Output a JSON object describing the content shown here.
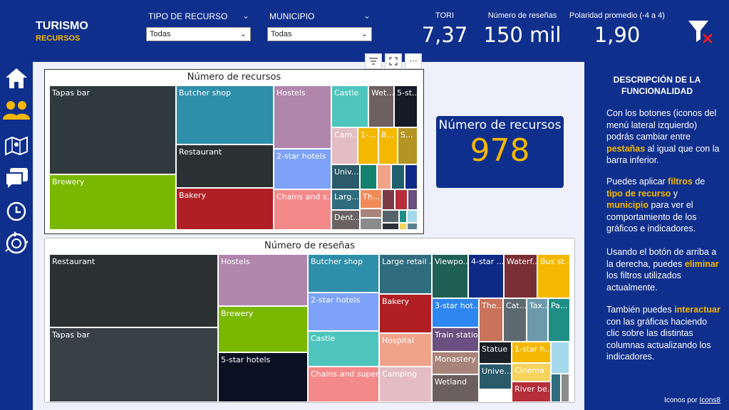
{
  "header": {
    "title": "TURISMO",
    "subtitle": "RECURSOS",
    "filters": [
      {
        "label": "TIPO DE RECURSO",
        "value": "Todas"
      },
      {
        "label": "MUNICIPIO",
        "value": "Todas"
      }
    ],
    "kpis": [
      {
        "label": "TORI",
        "value": "7,37"
      },
      {
        "label": "Número de reseñas",
        "value": "150 mil"
      },
      {
        "label": "Polaridad promedio (-4 a 4)",
        "value": "1,90"
      }
    ],
    "clear_filter_icon": "funnel-clear-icon"
  },
  "sidebar": {
    "items": [
      {
        "icon": "home-icon"
      },
      {
        "icon": "users-icon"
      },
      {
        "icon": "map-icon"
      },
      {
        "icon": "chat-icon"
      },
      {
        "icon": "clock-icon"
      },
      {
        "icon": "cycle-icon"
      }
    ]
  },
  "toolbar": {
    "icons": [
      "filter-lines-icon",
      "focus-mode-icon",
      "more-options-icon"
    ],
    "more_glyph": "···"
  },
  "card": {
    "label": "Número de recursos",
    "value": "978"
  },
  "treemap_recursos": {
    "title": "Número de recursos",
    "tiles": [
      {
        "label": "Tapas bar",
        "color": "#2f3a3c"
      },
      {
        "label": "Brewery",
        "color": "#7ab800"
      },
      {
        "label": "Butcher shop",
        "color": "#2f8eaa"
      },
      {
        "label": "Restaurant",
        "color": "#2b3133"
      },
      {
        "label": "Bakery",
        "color": "#b01f24"
      },
      {
        "label": "Hostels",
        "color": "#b086ad"
      },
      {
        "label": "2-star hotels",
        "color": "#7da2f7"
      },
      {
        "label": "Chains and s...",
        "color": "#f48989"
      },
      {
        "label": "Castle",
        "color": "#4ec5bc"
      },
      {
        "label": "Wet...",
        "color": "#6e5f60"
      },
      {
        "label": "5-st...",
        "color": "#141a26"
      },
      {
        "label": "Cam...",
        "color": "#e4bcc3"
      },
      {
        "label": "1-...",
        "color": "#f5b800"
      },
      {
        "label": "B...",
        "color": "#f5b800"
      },
      {
        "label": "S...",
        "color": "#b49524"
      },
      {
        "label": "Univ...",
        "color": "#2a5a6a"
      },
      {
        "label": "Larg...",
        "color": "#2f6d7e"
      },
      {
        "label": "Dent...",
        "color": "#6b6363"
      },
      {
        "label": "Th...",
        "color": "#f08b59"
      },
      {
        "label": "",
        "color": "#14806e"
      },
      {
        "label": "",
        "color": "#f1a38a"
      },
      {
        "label": "",
        "color": "#1f5f6e"
      },
      {
        "label": "",
        "color": "#0d2a86"
      },
      {
        "label": "",
        "color": "#7a3a45"
      },
      {
        "label": "",
        "color": "#b52e3a"
      },
      {
        "label": "",
        "color": "#6b4f80"
      },
      {
        "label": "",
        "color": "#a8847a"
      },
      {
        "label": "",
        "color": "#8b8b8b"
      },
      {
        "label": "",
        "color": "#56636b"
      },
      {
        "label": "",
        "color": "#1f8f86"
      },
      {
        "label": "",
        "color": "#a5d9ee"
      },
      {
        "label": "",
        "color": "#2c3237"
      },
      {
        "label": "",
        "color": "#f5d35c"
      },
      {
        "label": "",
        "color": "#5c7f8f"
      },
      {
        "label": "",
        "color": "#4a5257"
      },
      {
        "label": "",
        "color": "#2b3133"
      }
    ]
  },
  "treemap_resenas": {
    "title": "Número de reseñas",
    "tiles": [
      {
        "label": "Restaurant",
        "color": "#2b3133"
      },
      {
        "label": "Tapas bar",
        "color": "#384245"
      },
      {
        "label": "Hostels",
        "color": "#b086ad"
      },
      {
        "label": "Brewery",
        "color": "#7ab800"
      },
      {
        "label": "5-star hotels",
        "color": "#0a1122"
      },
      {
        "label": "Butcher shop",
        "color": "#2f8eaa"
      },
      {
        "label": "2-star hotels",
        "color": "#7da2f7"
      },
      {
        "label": "Castle",
        "color": "#4ec5bc"
      },
      {
        "label": "Chains and super...",
        "color": "#f48989"
      },
      {
        "label": "Large retail ...",
        "color": "#2f6d7e"
      },
      {
        "label": "Bakery",
        "color": "#b01f24"
      },
      {
        "label": "Hospital",
        "color": "#f1a38a"
      },
      {
        "label": "Camping",
        "color": "#e4bcc3"
      },
      {
        "label": "Viewpo...",
        "color": "#1f5f55"
      },
      {
        "label": "4-star ...",
        "color": "#0d2a86"
      },
      {
        "label": "Waterf...",
        "color": "#7a2e35"
      },
      {
        "label": "Bus st...",
        "color": "#f5b800"
      },
      {
        "label": "3-star hot...",
        "color": "#2e86f0"
      },
      {
        "label": "Train station",
        "color": "#6b4f80"
      },
      {
        "label": "Monastery",
        "color": "#a8847a"
      },
      {
        "label": "Wetland",
        "color": "#6b5f5f"
      },
      {
        "label": "The...",
        "color": "#c8735a"
      },
      {
        "label": "Cat...",
        "color": "#5c6a70"
      },
      {
        "label": "Tax...",
        "color": "#6c9aaa"
      },
      {
        "label": "Pa...",
        "color": "#1f8f86"
      },
      {
        "label": "Statue",
        "color": "#1c1f24"
      },
      {
        "label": "Unive...",
        "color": "#2a5a6a"
      },
      {
        "label": "1-star h...",
        "color": "#f5b800"
      },
      {
        "label": "Cinema",
        "color": "#f5d35c"
      },
      {
        "label": "River be...",
        "color": "#b52e3a"
      },
      {
        "label": "",
        "color": "#a5d9ee"
      },
      {
        "label": "",
        "color": "#2f6d7e"
      },
      {
        "label": "",
        "color": "#8b8b8b"
      },
      {
        "label": "",
        "color": "#a8847a"
      }
    ]
  },
  "description": {
    "title": "DESCRIPCIÓN DE LA FUNCIONALIDAD",
    "p1_a": "Con los botones (iconos del menú lateral izquierdo) podrás cambiar entre ",
    "p1_hl": "pestañas",
    "p1_b": " al igual que con la barra inferior.",
    "p2_a": "Puedes aplicar ",
    "p2_hl1": "filtros",
    "p2_b": " de ",
    "p2_hl2": "tipo de recurso",
    "p2_c": " y ",
    "p2_hl3": "municipio",
    "p2_d": " para ver el comportamiento de los gráficos e indicadores.",
    "p3_a": "Usando el botón de arriba a la derecha, puedes ",
    "p3_hl": "eliminar",
    "p3_b": " los filtros utilizados actualmente.",
    "p4_a": "También puedes ",
    "p4_hl": "interactuar",
    "p4_b": " con las gráficas haciendo clic sobre las distintas columnas actualizando los indicadores.",
    "credits_a": "Iconos por ",
    "credits_link": "Icons8"
  }
}
